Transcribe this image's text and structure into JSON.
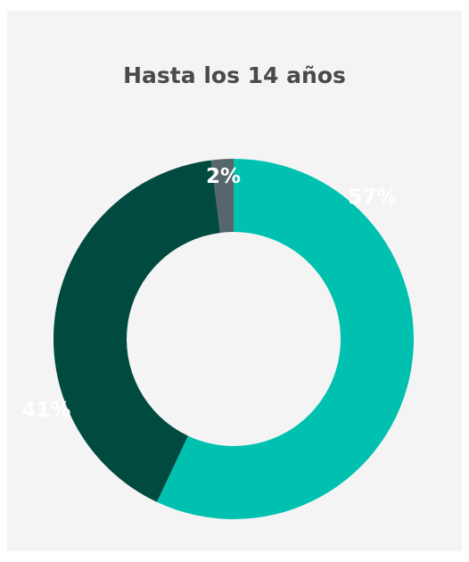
{
  "chart_data": {
    "type": "pie",
    "title": "Hasta los 14 años",
    "categories": [
      "57%",
      "41%",
      "2%"
    ],
    "values": [
      57,
      41,
      2
    ],
    "labels": [
      "57%",
      "41%",
      "2%"
    ],
    "colors": [
      "#00c1b0",
      "#004a40",
      "#56666a"
    ],
    "donut": true
  }
}
